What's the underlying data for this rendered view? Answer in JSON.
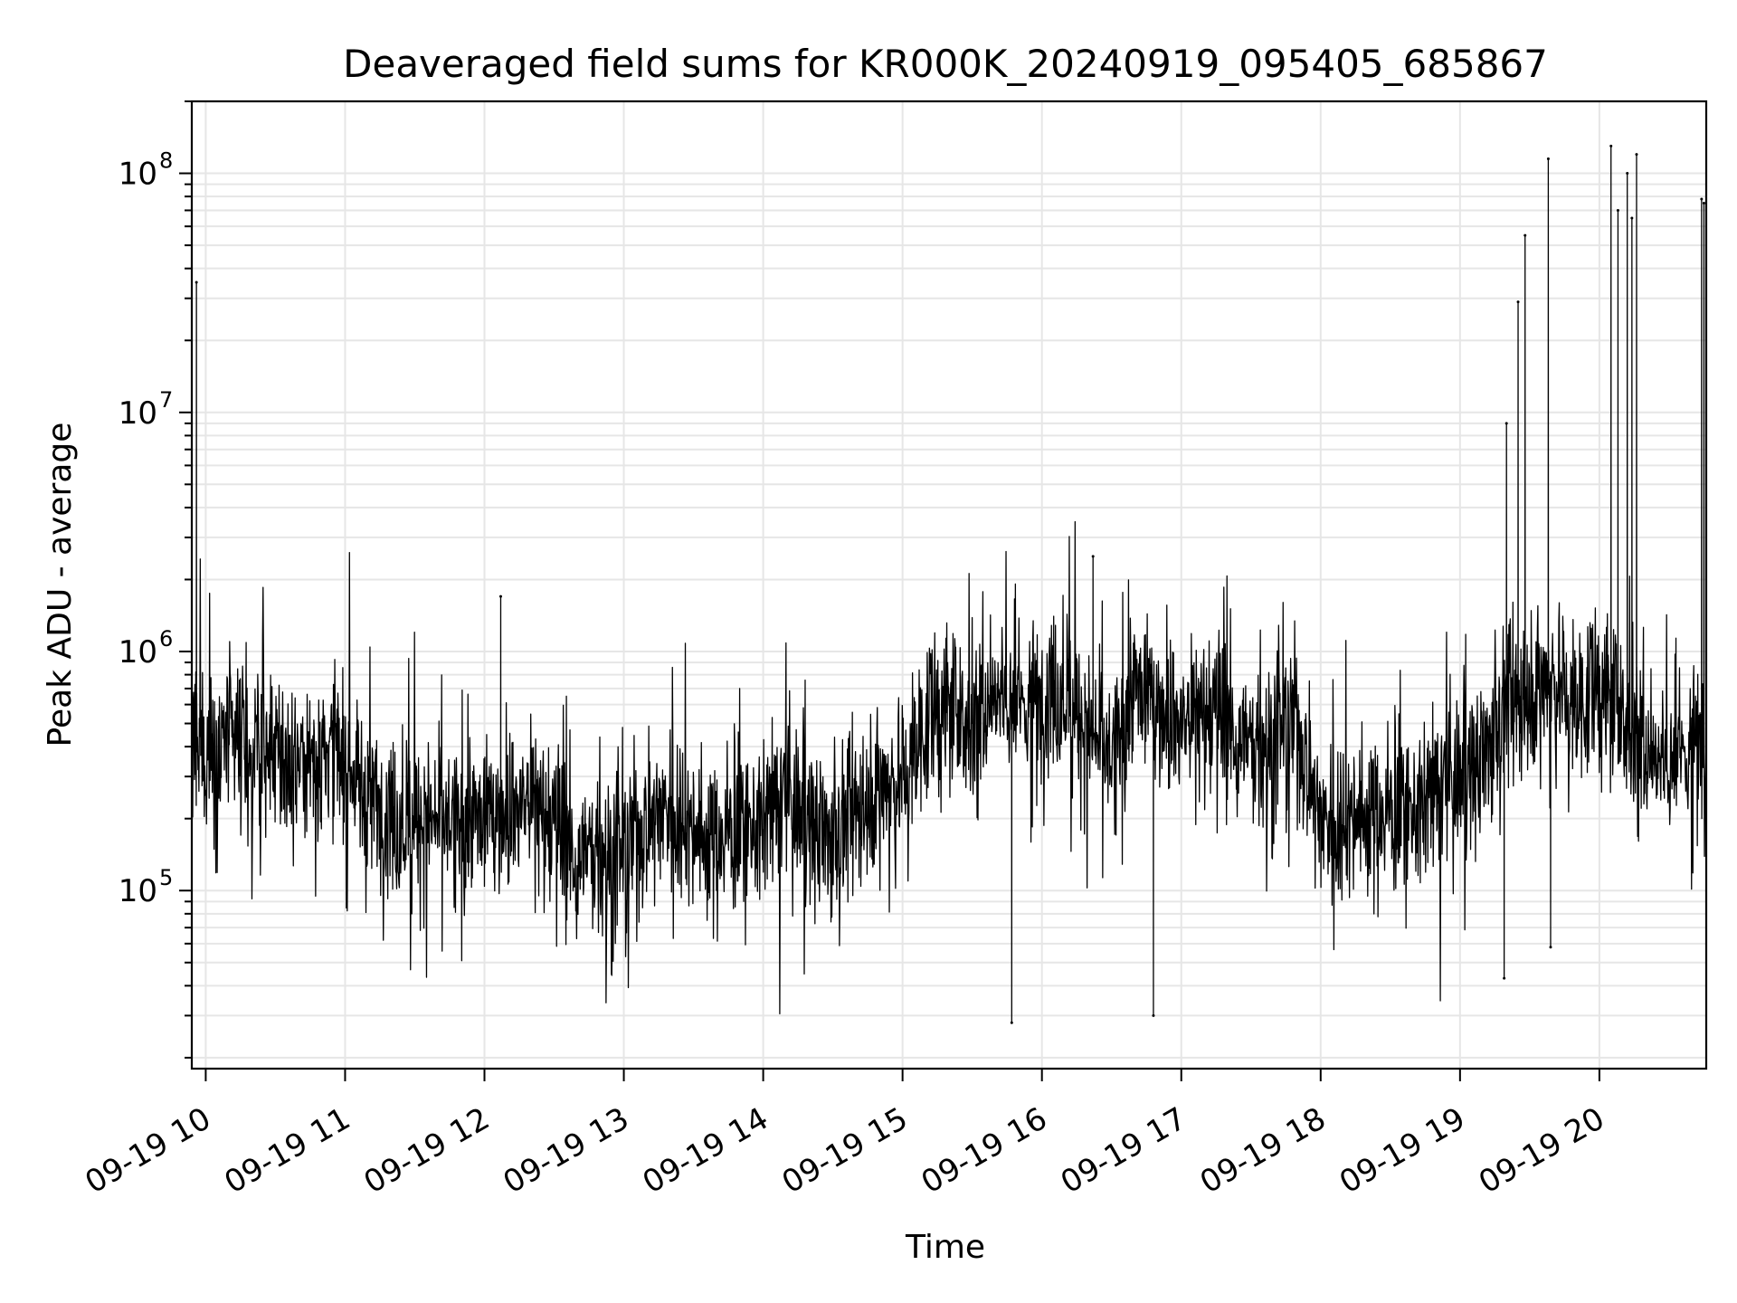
{
  "chart_data": {
    "type": "line",
    "title": "Deaveraged field sums for KR000K_20240919_095405_685867",
    "xlabel": "Time",
    "ylabel": "Peak ADU - average",
    "yscale": "log",
    "ylim": [
      18000,
      200000000
    ],
    "xlim": [
      "2024-09-19 09:54",
      "2024-09-19 20:46"
    ],
    "grid": true,
    "legend": "none",
    "line_color": "#000000",
    "x_ticks": [
      {
        "value": "2024-09-19 10:00",
        "label": "09-19 10"
      },
      {
        "value": "2024-09-19 11:00",
        "label": "09-19 11"
      },
      {
        "value": "2024-09-19 12:00",
        "label": "09-19 12"
      },
      {
        "value": "2024-09-19 13:00",
        "label": "09-19 13"
      },
      {
        "value": "2024-09-19 14:00",
        "label": "09-19 14"
      },
      {
        "value": "2024-09-19 15:00",
        "label": "09-19 15"
      },
      {
        "value": "2024-09-19 16:00",
        "label": "09-19 16"
      },
      {
        "value": "2024-09-19 17:00",
        "label": "09-19 17"
      },
      {
        "value": "2024-09-19 18:00",
        "label": "09-19 18"
      },
      {
        "value": "2024-09-19 19:00",
        "label": "09-19 19"
      },
      {
        "value": "2024-09-19 20:00",
        "label": "09-19 20"
      }
    ],
    "y_ticks": [
      {
        "value": 100000,
        "base": "10",
        "exp": "5"
      },
      {
        "value": 1000000,
        "base": "10",
        "exp": "6"
      },
      {
        "value": 10000000,
        "base": "10",
        "exp": "7"
      },
      {
        "value": 100000000,
        "base": "10",
        "exp": "8"
      }
    ],
    "series": [
      {
        "x": [
          "2024-09-19 09:54",
          "2024-09-19 10:00",
          "2024-09-19 10:10",
          "2024-09-19 10:20",
          "2024-09-19 10:30",
          "2024-09-19 10:40",
          "2024-09-19 10:50",
          "2024-09-19 11:00",
          "2024-09-19 11:10",
          "2024-09-19 11:20",
          "2024-09-19 11:30",
          "2024-09-19 11:40",
          "2024-09-19 11:50",
          "2024-09-19 12:00",
          "2024-09-19 12:10",
          "2024-09-19 12:20",
          "2024-09-19 12:30",
          "2024-09-19 12:40",
          "2024-09-19 12:50",
          "2024-09-19 13:00",
          "2024-09-19 13:10",
          "2024-09-19 13:20",
          "2024-09-19 13:30",
          "2024-09-19 13:40",
          "2024-09-19 13:50",
          "2024-09-19 14:00",
          "2024-09-19 14:10",
          "2024-09-19 14:20",
          "2024-09-19 14:30",
          "2024-09-19 14:40",
          "2024-09-19 14:50",
          "2024-09-19 15:00",
          "2024-09-19 15:10",
          "2024-09-19 15:20",
          "2024-09-19 15:30",
          "2024-09-19 15:40",
          "2024-09-19 15:50",
          "2024-09-19 16:00",
          "2024-09-19 16:10",
          "2024-09-19 16:20",
          "2024-09-19 16:30",
          "2024-09-19 16:40",
          "2024-09-19 16:50",
          "2024-09-19 17:00",
          "2024-09-19 17:10",
          "2024-09-19 17:20",
          "2024-09-19 17:30",
          "2024-09-19 17:40",
          "2024-09-19 17:50",
          "2024-09-19 18:00",
          "2024-09-19 18:10",
          "2024-09-19 18:20",
          "2024-09-19 18:30",
          "2024-09-19 18:40",
          "2024-09-19 18:50",
          "2024-09-19 19:00",
          "2024-09-19 19:10",
          "2024-09-19 19:20",
          "2024-09-19 19:30",
          "2024-09-19 19:40",
          "2024-09-19 19:50",
          "2024-09-19 20:00",
          "2024-09-19 20:10",
          "2024-09-19 20:20",
          "2024-09-19 20:30",
          "2024-09-19 20:40",
          "2024-09-19 20:46"
        ],
        "y": [
          400000,
          380000,
          420000,
          380000,
          350000,
          360000,
          380000,
          330000,
          250000,
          200000,
          200000,
          190000,
          190000,
          200000,
          220000,
          240000,
          180000,
          140000,
          150000,
          140000,
          200000,
          230000,
          180000,
          170000,
          180000,
          200000,
          250000,
          190000,
          160000,
          230000,
          280000,
          300000,
          500000,
          600000,
          500000,
          700000,
          600000,
          650000,
          700000,
          450000,
          350000,
          700000,
          600000,
          500000,
          550000,
          500000,
          400000,
          450000,
          500000,
          200000,
          200000,
          220000,
          210000,
          220000,
          260000,
          300000,
          350000,
          600000,
          700000,
          800000,
          600000,
          700000,
          550000,
          400000,
          350000,
          400000,
          500000
        ]
      }
    ],
    "spikes": [
      {
        "x": "2024-09-19 09:56",
        "y": 35000000
      },
      {
        "x": "2024-09-19 12:07",
        "y": 1700000
      },
      {
        "x": "2024-09-19 15:47",
        "y": 28000
      },
      {
        "x": "2024-09-19 16:22",
        "y": 2500000
      },
      {
        "x": "2024-09-19 16:48",
        "y": 30000
      },
      {
        "x": "2024-09-19 19:19",
        "y": 43000
      },
      {
        "x": "2024-09-19 19:20",
        "y": 9000000
      },
      {
        "x": "2024-09-19 19:25",
        "y": 29000000
      },
      {
        "x": "2024-09-19 19:28",
        "y": 55000000
      },
      {
        "x": "2024-09-19 19:38",
        "y": 115000000
      },
      {
        "x": "2024-09-19 19:39",
        "y": 58000
      },
      {
        "x": "2024-09-19 20:05",
        "y": 130000000
      },
      {
        "x": "2024-09-19 20:08",
        "y": 70000000
      },
      {
        "x": "2024-09-19 20:12",
        "y": 100000000
      },
      {
        "x": "2024-09-19 20:14",
        "y": 65000000
      },
      {
        "x": "2024-09-19 20:16",
        "y": 120000000
      },
      {
        "x": "2024-09-19 20:44",
        "y": 78000000
      },
      {
        "x": "2024-09-19 20:45",
        "y": 75000000
      }
    ]
  }
}
